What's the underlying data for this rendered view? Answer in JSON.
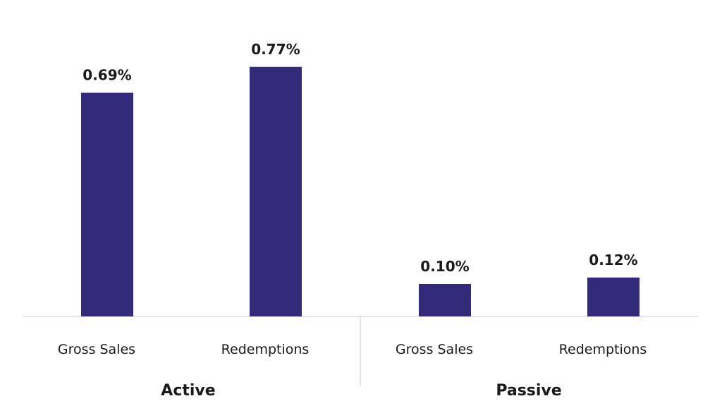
{
  "chart_data": {
    "type": "bar",
    "title": "",
    "xlabel": "",
    "ylabel": "",
    "ylim": [
      0,
      0.85
    ],
    "grid": false,
    "bar_color": "#332a7c",
    "groups": [
      {
        "name": "Active",
        "bars": [
          {
            "category": "Gross Sales",
            "value": 0.69,
            "label": "0.69%"
          },
          {
            "category": "Redemptions",
            "value": 0.77,
            "label": "0.77%"
          }
        ]
      },
      {
        "name": "Passive",
        "bars": [
          {
            "category": "Gross Sales",
            "value": 0.1,
            "label": "0.10%"
          },
          {
            "category": "Redemptions",
            "value": 0.12,
            "label": "0.12%"
          }
        ]
      }
    ]
  }
}
